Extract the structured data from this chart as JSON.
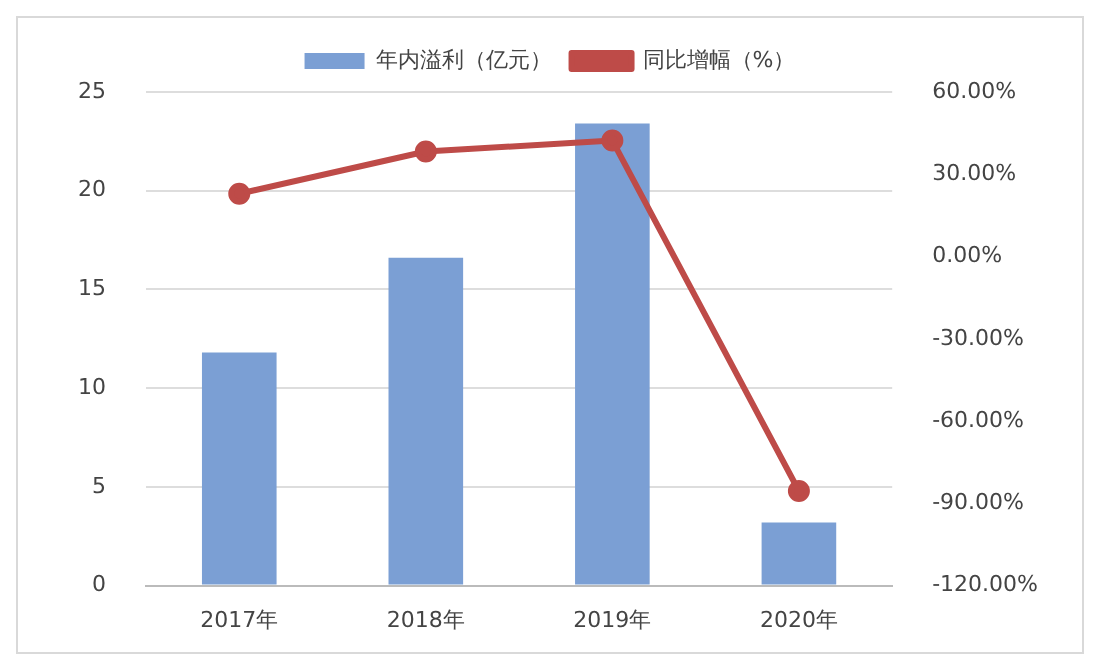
{
  "chart_data": {
    "type": "bar",
    "categories": [
      "2017年",
      "2018年",
      "2019年",
      "2020年"
    ],
    "series": [
      {
        "name": "年内溢利（亿元）",
        "color": "#7b9fd4",
        "values": [
          11.8,
          16.6,
          23.4,
          3.2
        ]
      },
      {
        "name": "同比增幅（%）",
        "type": "line",
        "axis": "y2",
        "color": "#be4b48",
        "values": [
          22.9,
          38.3,
          42.3,
          -85.5
        ]
      }
    ],
    "ylim": [
      0,
      25
    ],
    "yticks": [
      0,
      5,
      10,
      15,
      20,
      25
    ],
    "y2lim": [
      -120,
      60
    ],
    "y2ticks": [
      {
        "value": -120,
        "label": "-120.00%"
      },
      {
        "value": -90,
        "label": "-90.00%"
      },
      {
        "value": -60,
        "label": "-60.00%"
      },
      {
        "value": -30,
        "label": "-30.00%"
      },
      {
        "value": 0,
        "label": "0.00%"
      },
      {
        "value": 30,
        "label": "30.00%"
      },
      {
        "value": 60,
        "label": "60.00%"
      }
    ],
    "grid": "y",
    "legend": "top",
    "marker": "circle"
  }
}
